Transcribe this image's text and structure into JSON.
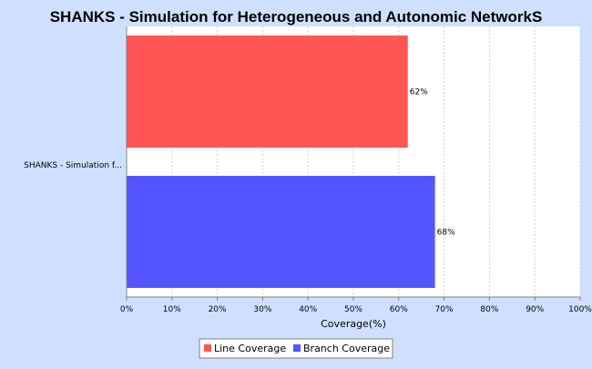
{
  "colors": {
    "background": "#cfe0ff",
    "plot_background": "#ffffff",
    "line_coverage": "#ff5555",
    "branch_coverage": "#5555ff",
    "grid": "#d0d0d0"
  },
  "chart_data": {
    "type": "bar",
    "orientation": "horizontal",
    "title": "SHANKS - Simulation for Heterogeneous and Autonomic NetworkS",
    "categories": [
      "SHANKS - Simulation f..."
    ],
    "series": [
      {
        "name": "Line Coverage",
        "values": [
          62
        ],
        "label": "62%",
        "color": "#ff5555"
      },
      {
        "name": "Branch Coverage",
        "values": [
          68
        ],
        "label": "68%",
        "color": "#5555ff"
      }
    ],
    "xlabel": "Coverage(%)",
    "ylabel": "",
    "xlim": [
      0,
      100
    ],
    "xticks": [
      "0%",
      "10%",
      "20%",
      "30%",
      "40%",
      "50%",
      "60%",
      "70%",
      "80%",
      "90%",
      "100%"
    ],
    "grid": true,
    "legend_position": "bottom"
  }
}
